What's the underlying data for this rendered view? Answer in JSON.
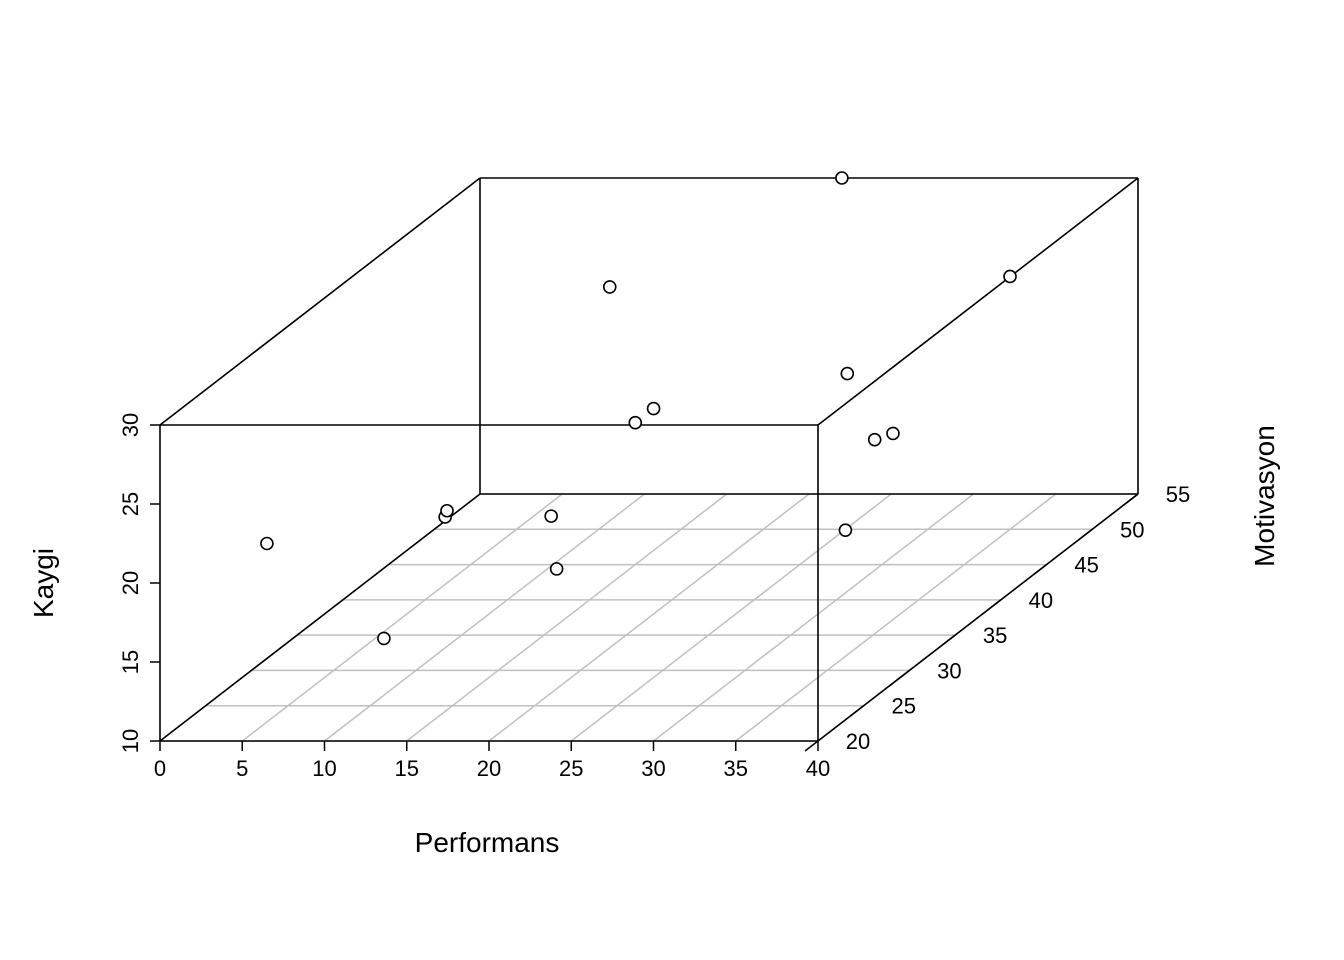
{
  "chart_data": {
    "type": "scatter",
    "title": "",
    "xlabel": "Performans",
    "ylabel": "Motivasyon",
    "zlabel": "Kaygi",
    "xlim": [
      0,
      40
    ],
    "ylim": [
      20,
      55
    ],
    "zlim": [
      10,
      30
    ],
    "x_ticks": [
      "0",
      "5",
      "10",
      "15",
      "20",
      "25",
      "30",
      "35",
      "40"
    ],
    "y_ticks": [
      "20",
      "25",
      "30",
      "35",
      "40",
      "45",
      "50",
      "55"
    ],
    "z_ticks": [
      "10",
      "15",
      "20",
      "25",
      "30"
    ],
    "grid": true,
    "box": true,
    "points": [
      {
        "x": 6.5,
        "y": 20.0,
        "z": 22.5
      },
      {
        "x": 12.5,
        "y": 22.0,
        "z": 15.6
      },
      {
        "x": 14.0,
        "y": 26.0,
        "z": 21.5
      },
      {
        "x": 13.0,
        "y": 28.0,
        "z": 21.0
      },
      {
        "x": 9.0,
        "y": 53.0,
        "z": 24.0
      },
      {
        "x": 23.0,
        "y": 22.0,
        "z": 20.0
      },
      {
        "x": 21.0,
        "y": 25.0,
        "z": 22.0
      },
      {
        "x": 20.0,
        "y": 36.0,
        "z": 23.0
      },
      {
        "x": 20.0,
        "y": 38.0,
        "z": 23.0
      },
      {
        "x": 22.0,
        "y": 55.0,
        "z": 30.0
      },
      {
        "x": 39.0,
        "y": 28.0,
        "z": 25.5
      },
      {
        "x": 39.0,
        "y": 30.0,
        "z": 25.0
      },
      {
        "x": 34.0,
        "y": 34.0,
        "z": 27.0
      },
      {
        "x": 40.0,
        "y": 23.0,
        "z": 22.0
      },
      {
        "x": 35.0,
        "y": 50.0,
        "z": 26.0
      }
    ]
  }
}
